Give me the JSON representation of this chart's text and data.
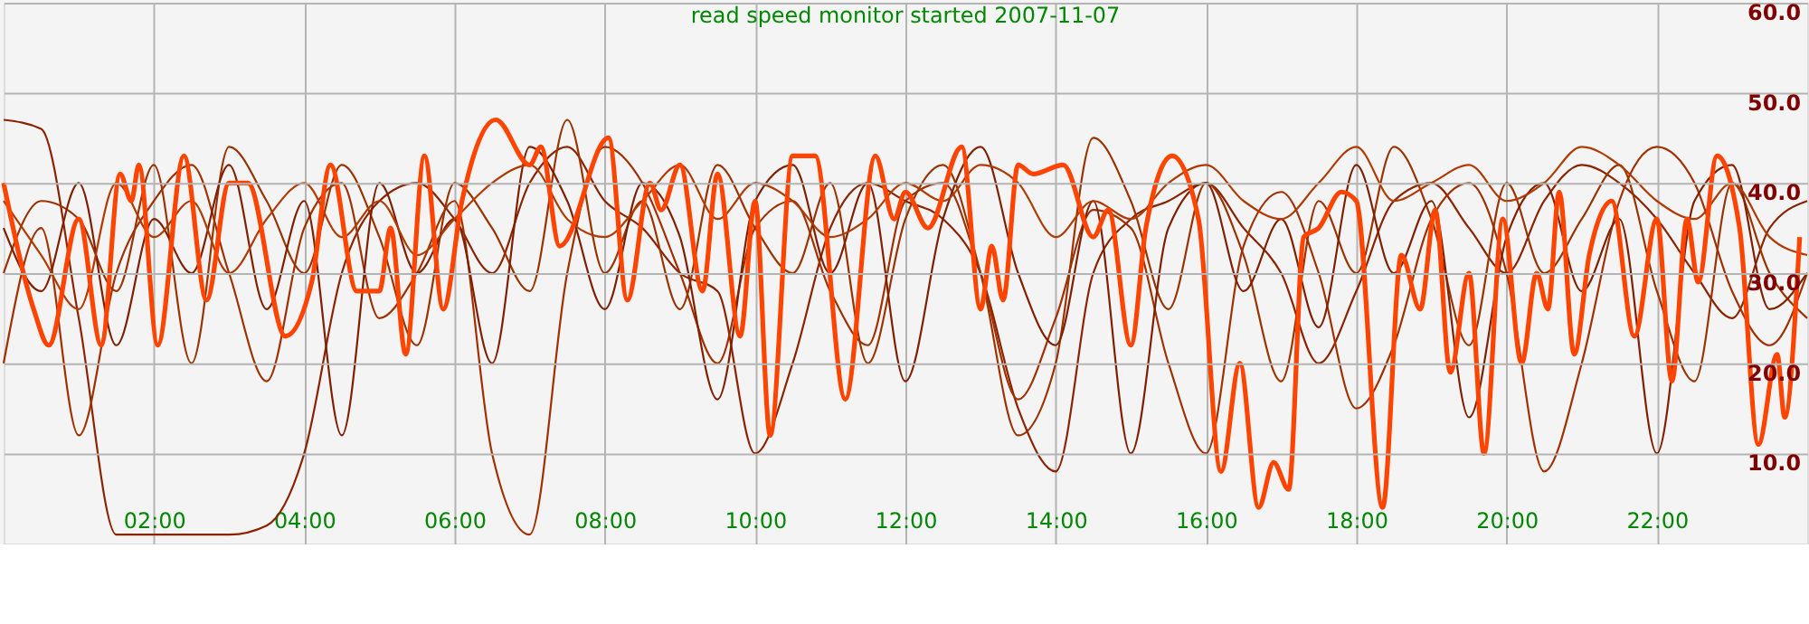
{
  "chart_data": {
    "type": "line",
    "title": "read speed monitor started 2007-11-07",
    "xlim": [
      0,
      24
    ],
    "xticks": [
      {
        "value": 2,
        "label": "02:00"
      },
      {
        "value": 4,
        "label": "04:00"
      },
      {
        "value": 6,
        "label": "06:00"
      },
      {
        "value": 8,
        "label": "08:00"
      },
      {
        "value": 10,
        "label": "10:00"
      },
      {
        "value": 12,
        "label": "12:00"
      },
      {
        "value": 14,
        "label": "14:00"
      },
      {
        "value": 16,
        "label": "16:00"
      },
      {
        "value": 18,
        "label": "18:00"
      },
      {
        "value": 20,
        "label": "20:00"
      },
      {
        "value": 22,
        "label": "22:00"
      }
    ],
    "ylim": [
      0,
      60
    ],
    "yticks": [
      {
        "value": 10,
        "label": "10.0"
      },
      {
        "value": 20,
        "label": "20.0"
      },
      {
        "value": 30,
        "label": "30.0"
      },
      {
        "value": 40,
        "label": "40.0"
      },
      {
        "value": 50,
        "label": "50.0"
      },
      {
        "value": 60,
        "label": "60.0"
      }
    ],
    "grid": true,
    "marker": "none",
    "line_style": "solid",
    "series": [
      {
        "color": "#8b2200",
        "x": [
          0,
          0.5,
          1,
          1.5,
          2,
          2.5,
          3,
          3.5,
          4,
          4.5,
          5,
          5.5,
          6,
          6.5,
          7,
          7.5,
          8,
          8.5,
          9,
          9.5,
          10,
          10.5,
          11,
          11.5,
          12,
          12.5,
          13,
          13.5,
          14,
          14.5,
          15,
          15.5,
          16,
          16.5,
          17,
          17.5,
          18,
          18.5,
          19,
          19.5,
          20,
          20.5,
          21,
          21.5,
          22,
          22.5,
          23,
          23.5,
          24
        ],
        "values": [
          47,
          46,
          25,
          1,
          1,
          1,
          1,
          2,
          10,
          30,
          38,
          40,
          36,
          30,
          40,
          44,
          38,
          35,
          30,
          28,
          10,
          20,
          35,
          40,
          38,
          36,
          30,
          15,
          8,
          30,
          36,
          38,
          40,
          35,
          30,
          20,
          28,
          38,
          40,
          35,
          30,
          38,
          42,
          40,
          36,
          30,
          25,
          35,
          38
        ]
      },
      {
        "color": "#a03000",
        "x": [
          0,
          0.5,
          1,
          1.5,
          2,
          2.5,
          3,
          3.5,
          4,
          4.5,
          5,
          5.5,
          6,
          6.5,
          7,
          7.5,
          8,
          8.5,
          9,
          9.5,
          10,
          10.5,
          11,
          11.5,
          12,
          12.5,
          13,
          13.5,
          14,
          14.5,
          15,
          15.5,
          16,
          16.5,
          17,
          17.5,
          18,
          18.5,
          19,
          19.5,
          20,
          20.5,
          21,
          21.5,
          22,
          22.5,
          23,
          23.5,
          24
        ],
        "values": [
          20,
          35,
          12,
          30,
          38,
          42,
          30,
          18,
          35,
          40,
          25,
          30,
          38,
          10,
          1,
          30,
          44,
          40,
          30,
          20,
          35,
          38,
          28,
          22,
          38,
          40,
          30,
          16,
          25,
          37,
          35,
          20,
          10,
          33,
          39,
          30,
          15,
          22,
          36,
          40,
          30,
          8,
          20,
          38,
          44,
          40,
          28,
          22,
          30
        ]
      },
      {
        "color": "#993300",
        "x": [
          0,
          0.5,
          1,
          1.5,
          2,
          2.5,
          3,
          3.5,
          4,
          4.5,
          5,
          5.5,
          6,
          6.5,
          7,
          7.5,
          8,
          8.5,
          9,
          9.5,
          10,
          10.5,
          11,
          11.5,
          12,
          12.5,
          13,
          13.5,
          14,
          14.5,
          15,
          15.5,
          16,
          16.5,
          17,
          17.5,
          18,
          18.5,
          19,
          19.5,
          20,
          20.5,
          21,
          21.5,
          22,
          22.5,
          23,
          23.5,
          24
        ],
        "values": [
          30,
          38,
          36,
          28,
          42,
          20,
          44,
          38,
          30,
          42,
          34,
          22,
          40,
          35,
          28,
          47,
          30,
          38,
          26,
          42,
          35,
          30,
          40,
          20,
          36,
          42,
          30,
          12,
          20,
          45,
          38,
          26,
          40,
          32,
          18,
          38,
          30,
          44,
          36,
          22,
          40,
          30,
          36,
          42,
          28,
          18,
          40,
          30,
          25
        ]
      },
      {
        "color": "#7f1f00",
        "x": [
          0,
          0.5,
          1,
          1.5,
          2,
          2.5,
          3,
          3.5,
          4,
          4.5,
          5,
          5.5,
          6,
          6.5,
          7,
          7.5,
          8,
          8.5,
          9,
          9.5,
          10,
          10.5,
          11,
          11.5,
          12,
          12.5,
          13,
          13.5,
          14,
          14.5,
          15,
          15.5,
          16,
          16.5,
          17,
          17.5,
          18,
          18.5,
          19,
          19.5,
          20,
          20.5,
          21,
          21.5,
          22,
          22.5,
          23,
          23.5,
          24
        ],
        "values": [
          35,
          28,
          40,
          22,
          36,
          30,
          42,
          26,
          38,
          12,
          40,
          30,
          36,
          20,
          44,
          38,
          26,
          40,
          34,
          16,
          38,
          42,
          30,
          40,
          18,
          36,
          44,
          30,
          22,
          38,
          10,
          35,
          40,
          28,
          36,
          24,
          42,
          30,
          38,
          14,
          34,
          40,
          28,
          36,
          10,
          38,
          42,
          26,
          30
        ]
      },
      {
        "color": "#b03a00",
        "x": [
          0,
          0.5,
          1,
          1.5,
          2,
          2.5,
          3,
          3.5,
          4,
          4.5,
          5,
          5.5,
          6,
          6.5,
          7,
          7.5,
          8,
          8.5,
          9,
          9.5,
          10,
          10.5,
          11,
          11.5,
          12,
          12.5,
          13,
          13.5,
          14,
          14.5,
          15,
          15.5,
          16,
          16.5,
          17,
          17.5,
          18,
          18.5,
          19,
          19.5,
          20,
          20.5,
          21,
          21.5,
          22,
          22.5,
          23,
          23.5,
          24
        ],
        "values": [
          38,
          32,
          26,
          40,
          34,
          38,
          30,
          36,
          40,
          34,
          38,
          32,
          36,
          40,
          42,
          36,
          34,
          38,
          42,
          36,
          40,
          38,
          34,
          36,
          40,
          38,
          42,
          40,
          34,
          38,
          36,
          40,
          42,
          38,
          36,
          40,
          44,
          38,
          40,
          42,
          38,
          40,
          44,
          42,
          38,
          36,
          40,
          34,
          32
        ]
      },
      {
        "color": "#ff4400",
        "x": [
          0,
          0.4,
          0.6,
          1.0,
          1.3,
          1.55,
          1.7,
          1.8,
          2.05,
          2.4,
          2.7,
          3.0,
          3.25,
          3.75,
          4.1,
          4.35,
          4.7,
          5.0,
          5.15,
          5.35,
          5.6,
          5.85,
          6.1,
          6.55,
          7.0,
          7.15,
          7.4,
          8.05,
          8.3,
          8.6,
          8.75,
          9.0,
          9.3,
          9.5,
          9.8,
          10.0,
          10.2,
          10.5,
          10.8,
          11.2,
          11.6,
          11.85,
          12.0,
          12.3,
          12.75,
          13.0,
          13.15,
          13.3,
          13.5,
          13.7,
          14.1,
          14.5,
          14.7,
          15.0,
          15.2,
          15.55,
          15.9,
          16.2,
          16.45,
          16.7,
          16.9,
          17.1,
          17.3,
          17.5,
          17.8,
          18.0,
          18.35,
          18.6,
          18.85,
          19.05,
          19.25,
          19.5,
          19.7,
          19.95,
          20.2,
          20.4,
          20.55,
          20.7,
          20.9,
          21.1,
          21.4,
          21.7,
          22.0,
          22.2,
          22.4,
          22.55,
          22.8,
          23.1,
          23.35,
          23.6,
          23.7,
          23.9
        ],
        "values": [
          40,
          26,
          22,
          36,
          22,
          41,
          38,
          42,
          22,
          43,
          27,
          40,
          40,
          23,
          29,
          42,
          28,
          28,
          35,
          21,
          43,
          26,
          38,
          47,
          42,
          44,
          33,
          45,
          27,
          40,
          37,
          42,
          28,
          41,
          23,
          38,
          12,
          43,
          43,
          16,
          43,
          36,
          39,
          35,
          44,
          26,
          33,
          27,
          42,
          41,
          42,
          34,
          37,
          22,
          35,
          43,
          36,
          8,
          20,
          4,
          9,
          6,
          34,
          35,
          39,
          38,
          4,
          32,
          26,
          37,
          19,
          30,
          10,
          36,
          20,
          30,
          26,
          39,
          21,
          32,
          38,
          23,
          36,
          18,
          36,
          29,
          43,
          35,
          11,
          21,
          14,
          34
        ]
      }
    ]
  }
}
